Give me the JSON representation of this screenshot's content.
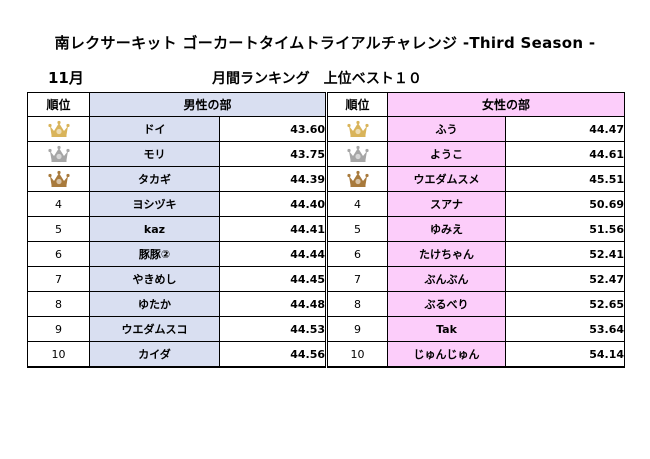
{
  "title": "南レクサーキット ゴーカートタイムトライアルチャレンジ -Third Season -",
  "month": "11月",
  "subtitle": "月間ランキング　上位ベスト１０",
  "headers": {
    "rank": "順位",
    "men": "男性の部",
    "women": "女性の部"
  },
  "colors": {
    "men_bg": "#d9dff1",
    "women_bg": "#fccdfa",
    "gold": "#d9b45a",
    "silver": "#a6a6a6",
    "bronze": "#a87a3c"
  },
  "men": [
    {
      "rank": "",
      "medal": "gold",
      "name": "ドイ",
      "time": "43.60"
    },
    {
      "rank": "",
      "medal": "silver",
      "name": "モリ",
      "time": "43.75"
    },
    {
      "rank": "",
      "medal": "bronze",
      "name": "タカギ",
      "time": "44.39"
    },
    {
      "rank": "4",
      "medal": "",
      "name": "ヨシヅキ",
      "time": "44.40"
    },
    {
      "rank": "5",
      "medal": "",
      "name": "kaz",
      "time": "44.41"
    },
    {
      "rank": "6",
      "medal": "",
      "name": "豚豚②",
      "time": "44.44"
    },
    {
      "rank": "7",
      "medal": "",
      "name": "やきめし",
      "time": "44.45"
    },
    {
      "rank": "8",
      "medal": "",
      "name": "ゆたか",
      "time": "44.48"
    },
    {
      "rank": "9",
      "medal": "",
      "name": "ウエダムスコ",
      "time": "44.53"
    },
    {
      "rank": "10",
      "medal": "",
      "name": "カイダ",
      "time": "44.56"
    }
  ],
  "women": [
    {
      "rank": "",
      "medal": "gold",
      "name": "ふう",
      "time": "44.47"
    },
    {
      "rank": "",
      "medal": "silver",
      "name": "ようこ",
      "time": "44.61"
    },
    {
      "rank": "",
      "medal": "bronze",
      "name": "ウエダムスメ",
      "time": "45.51"
    },
    {
      "rank": "4",
      "medal": "",
      "name": "スアナ",
      "time": "50.69"
    },
    {
      "rank": "5",
      "medal": "",
      "name": "ゆみえ",
      "time": "51.56"
    },
    {
      "rank": "6",
      "medal": "",
      "name": "たけちゃん",
      "time": "52.41"
    },
    {
      "rank": "7",
      "medal": "",
      "name": "ぶんぶん",
      "time": "52.47"
    },
    {
      "rank": "8",
      "medal": "",
      "name": "ぶるべり",
      "time": "52.65"
    },
    {
      "rank": "9",
      "medal": "",
      "name": "Tak",
      "time": "53.64"
    },
    {
      "rank": "10",
      "medal": "",
      "name": "じゅんじゅん",
      "time": "54.14"
    }
  ]
}
